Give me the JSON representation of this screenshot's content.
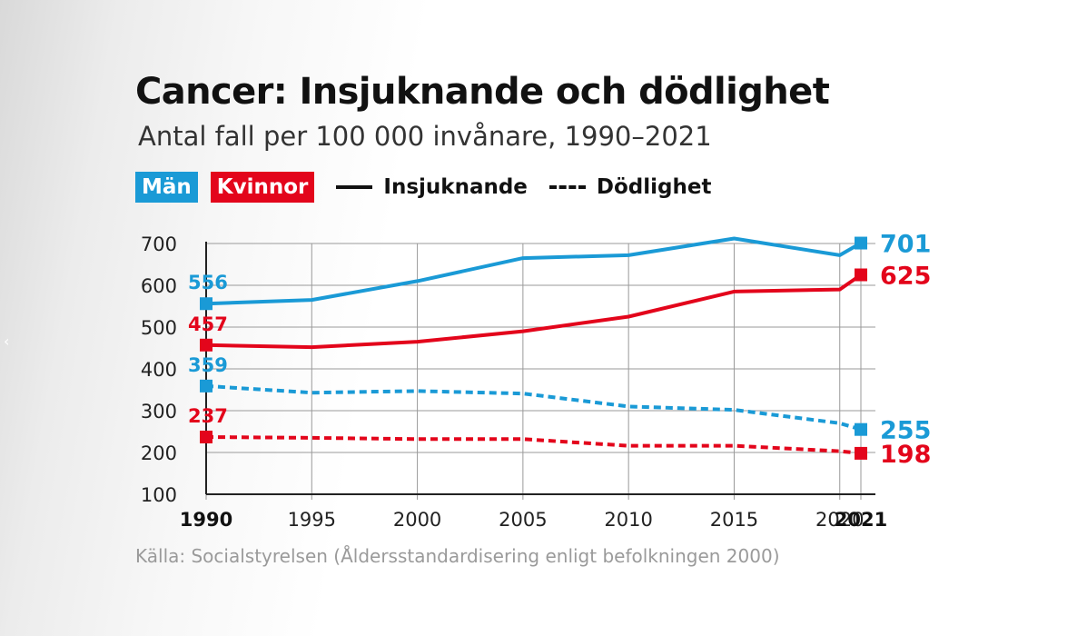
{
  "chart_data": {
    "type": "line",
    "title": "Cancer: Insjuknande och dödlighet",
    "subtitle": "Antal fall per 100 000 invånare, 1990–2021",
    "x": [
      1990,
      1995,
      2000,
      2005,
      2010,
      2015,
      2020,
      2021
    ],
    "xticks": [
      1990,
      1995,
      2000,
      2005,
      2010,
      2015,
      2020,
      2021
    ],
    "xtick_labels": [
      "1990",
      "1995",
      "2000",
      "2005",
      "2010",
      "2015",
      "2020",
      "2021"
    ],
    "bold_xticks": [
      "1990",
      "2021"
    ],
    "yticks": [
      100,
      200,
      300,
      400,
      500,
      600,
      700
    ],
    "ytick_labels": [
      "100",
      "200",
      "300",
      "400",
      "500",
      "600",
      "700"
    ],
    "ylim": [
      100,
      700
    ],
    "xlim": [
      1990,
      2021
    ],
    "grid": true,
    "legend": {
      "groups": [
        {
          "label": "Män",
          "color": "#1a9ad6"
        },
        {
          "label": "Kvinnor",
          "color": "#e3051b"
        }
      ],
      "styles": [
        {
          "label": "Insjuknande",
          "style": "solid"
        },
        {
          "label": "Dödlighet",
          "style": "dashed"
        }
      ],
      "placement": "top-left"
    },
    "series": [
      {
        "name": "Män – Insjuknande",
        "color": "#1a9ad6",
        "style": "solid",
        "values": [
          556,
          565,
          610,
          665,
          672,
          712,
          672,
          701
        ],
        "start_label": "556",
        "end_label": "701"
      },
      {
        "name": "Kvinnor – Insjuknande",
        "color": "#e3051b",
        "style": "solid",
        "values": [
          457,
          452,
          465,
          490,
          525,
          585,
          590,
          625
        ],
        "start_label": "457",
        "end_label": "625"
      },
      {
        "name": "Män – Dödlighet",
        "color": "#1a9ad6",
        "style": "dashed",
        "values": [
          359,
          343,
          347,
          341,
          310,
          302,
          270,
          255
        ],
        "start_label": "359",
        "end_label": "255"
      },
      {
        "name": "Kvinnor – Dödlighet",
        "color": "#e3051b",
        "style": "dashed",
        "values": [
          237,
          235,
          232,
          232,
          216,
          216,
          203,
          198
        ],
        "start_label": "237",
        "end_label": "198"
      }
    ],
    "source": "Källa: Socialstyrelsen (Åldersstandardisering enligt befolkningen 2000)"
  },
  "nav": {
    "prev_icon": "‹"
  }
}
